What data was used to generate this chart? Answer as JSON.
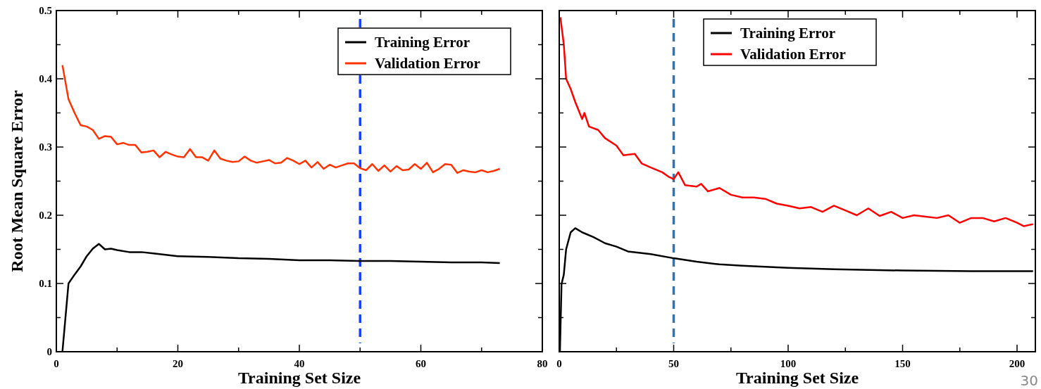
{
  "chart_data": [
    {
      "type": "line",
      "xlabel": "Training Set Size",
      "ylabel": "Root Mean Square Error",
      "xlim": [
        0,
        80
      ],
      "ylim": [
        0,
        0.5
      ],
      "xticks": [
        0,
        {
          "value": 10,
          "label": null
        },
        20,
        {
          "value": 30,
          "label": null
        },
        40,
        {
          "value": 50,
          "label": null
        },
        60,
        {
          "value": 70,
          "label": null
        },
        80
      ],
      "yticks": [
        0,
        {
          "value": 0.05,
          "label": null
        },
        0.1,
        {
          "value": 0.15,
          "label": null
        },
        0.2,
        {
          "value": 0.25,
          "label": null
        },
        0.3,
        {
          "value": 0.35,
          "label": null
        },
        0.4,
        {
          "value": 0.45,
          "label": null
        },
        0.5
      ],
      "legend": "top right",
      "grid": false,
      "line_style": "solid",
      "marker": "none",
      "ref_lines": [
        {
          "axis": "x",
          "value": 50,
          "label": null,
          "color": "#1f3fff",
          "line_style": "dashed"
        }
      ],
      "series": [
        {
          "name": "Training Error",
          "color": "#000000",
          "x": [
            1,
            2,
            3,
            4,
            5,
            6,
            7,
            8,
            9,
            10,
            12,
            14,
            16,
            18,
            20,
            25,
            30,
            35,
            40,
            45,
            50,
            55,
            60,
            65,
            70,
            73
          ],
          "values": [
            0,
            0.1,
            0.113,
            0.125,
            0.14,
            0.151,
            0.158,
            0.15,
            0.151,
            0.149,
            0.146,
            0.146,
            0.144,
            0.142,
            0.14,
            0.139,
            0.137,
            0.136,
            0.134,
            0.134,
            0.133,
            0.133,
            0.132,
            0.131,
            0.131,
            0.13
          ]
        },
        {
          "name": "Validation Error",
          "color": "#ff3300",
          "x": [
            1,
            2,
            3,
            4,
            5,
            6,
            7,
            8,
            9,
            10,
            11,
            12,
            13,
            14,
            15,
            16,
            17,
            18,
            19,
            20,
            21,
            22,
            23,
            24,
            25,
            26,
            27,
            28,
            29,
            30,
            31,
            32,
            33,
            34,
            35,
            36,
            37,
            38,
            39,
            40,
            41,
            42,
            43,
            44,
            45,
            46,
            47,
            48,
            49,
            50,
            51,
            52,
            53,
            54,
            55,
            56,
            57,
            58,
            59,
            60,
            61,
            62,
            63,
            64,
            65,
            66,
            67,
            68,
            69,
            70,
            71,
            72,
            73
          ],
          "values": [
            0.42,
            0.37,
            0.35,
            0.332,
            0.33,
            0.325,
            0.312,
            0.316,
            0.315,
            0.304,
            0.306,
            0.303,
            0.303,
            0.292,
            0.293,
            0.295,
            0.285,
            0.293,
            0.289,
            0.286,
            0.285,
            0.297,
            0.285,
            0.285,
            0.28,
            0.295,
            0.283,
            0.28,
            0.278,
            0.279,
            0.286,
            0.28,
            0.277,
            0.279,
            0.281,
            0.276,
            0.277,
            0.284,
            0.28,
            0.275,
            0.28,
            0.27,
            0.278,
            0.268,
            0.274,
            0.27,
            0.273,
            0.276,
            0.276,
            0.269,
            0.266,
            0.275,
            0.265,
            0.273,
            0.264,
            0.272,
            0.266,
            0.267,
            0.275,
            0.268,
            0.277,
            0.263,
            0.268,
            0.275,
            0.274,
            0.262,
            0.266,
            0.264,
            0.263,
            0.266,
            0.263,
            0.265,
            0.268
          ]
        }
      ]
    },
    {
      "type": "line",
      "xlabel": "Training Set Size",
      "xlim": [
        0,
        208
      ],
      "ylim": [
        0,
        0.5
      ],
      "tick_labels": "x",
      "xticks": [
        0,
        {
          "value": 25,
          "label": null
        },
        50,
        {
          "value": 75,
          "label": null
        },
        100,
        {
          "value": 125,
          "label": null
        },
        150,
        {
          "value": 175,
          "label": null
        },
        200
      ],
      "yticks": [
        0,
        {
          "value": 0.05,
          "label": null
        },
        0.1,
        {
          "value": 0.15,
          "label": null
        },
        0.2,
        {
          "value": 0.25,
          "label": null
        },
        0.3,
        {
          "value": 0.35,
          "label": null
        },
        0.4,
        {
          "value": 0.45,
          "label": null
        },
        0.5
      ],
      "legend": "top",
      "grid": false,
      "line_style": "solid",
      "marker": "none",
      "ref_lines": [
        {
          "axis": "x",
          "value": 50,
          "label": null,
          "color": "#2e75b6",
          "line_style": "dashed"
        }
      ],
      "annotations": [
        "30"
      ],
      "series": [
        {
          "name": "Training Error",
          "color": "#000000",
          "x": [
            0.3,
            1,
            2,
            3,
            5,
            7,
            10,
            15,
            20,
            25,
            30,
            40,
            50,
            60,
            70,
            80,
            100,
            120,
            150,
            180,
            207
          ],
          "values": [
            0,
            0.099,
            0.113,
            0.15,
            0.175,
            0.181,
            0.175,
            0.168,
            0.159,
            0.154,
            0.147,
            0.143,
            0.137,
            0.132,
            0.128,
            0.126,
            0.123,
            0.121,
            0.119,
            0.118,
            0.118
          ]
        },
        {
          "name": "Validation Error",
          "color": "#ff0000",
          "x": [
            0.5,
            2,
            3,
            5,
            7,
            10,
            11,
            13,
            17,
            20,
            25,
            28,
            33,
            36,
            40,
            45,
            48,
            50,
            52,
            55,
            60,
            62,
            65,
            70,
            75,
            80,
            85,
            90,
            95,
            100,
            105,
            110,
            115,
            120,
            125,
            130,
            135,
            140,
            145,
            150,
            155,
            160,
            165,
            170,
            175,
            180,
            185,
            190,
            195,
            200,
            203,
            207
          ],
          "values": [
            0.49,
            0.45,
            0.4,
            0.385,
            0.366,
            0.341,
            0.35,
            0.33,
            0.325,
            0.313,
            0.302,
            0.288,
            0.29,
            0.276,
            0.27,
            0.263,
            0.256,
            0.253,
            0.263,
            0.244,
            0.242,
            0.246,
            0.235,
            0.24,
            0.23,
            0.226,
            0.226,
            0.224,
            0.217,
            0.214,
            0.21,
            0.212,
            0.205,
            0.214,
            0.207,
            0.2,
            0.21,
            0.199,
            0.205,
            0.196,
            0.2,
            0.198,
            0.196,
            0.2,
            0.189,
            0.196,
            0.196,
            0.191,
            0.196,
            0.189,
            0.184,
            0.187
          ]
        }
      ]
    }
  ]
}
